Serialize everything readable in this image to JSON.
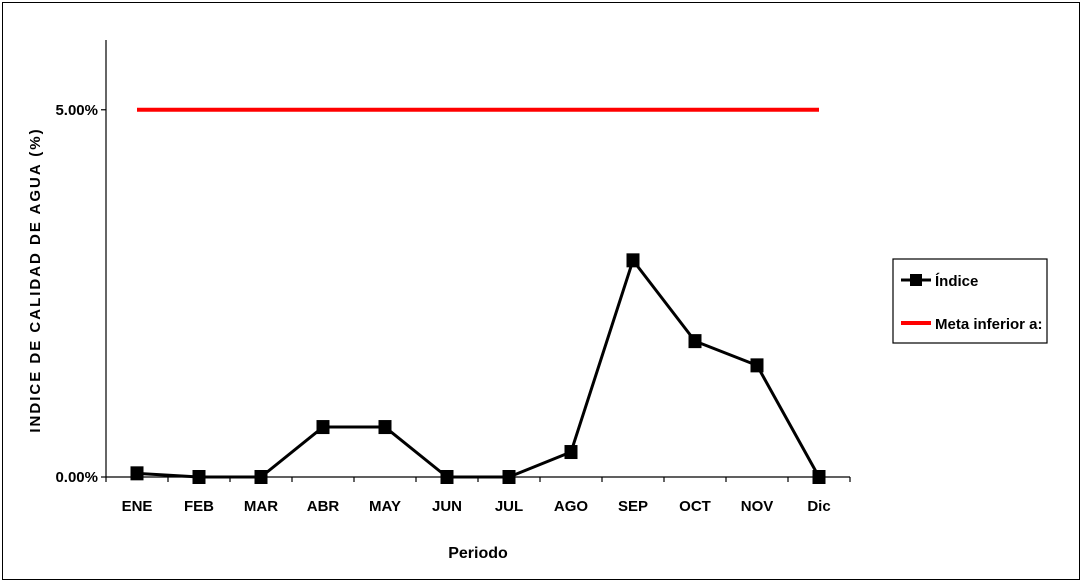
{
  "chart_data": {
    "type": "line",
    "categories": [
      "ENE",
      "FEB",
      "MAR",
      "ABR",
      "MAY",
      "JUN",
      "JUL",
      "AGO",
      "SEP",
      "OCT",
      "NOV",
      "Dic"
    ],
    "series": [
      {
        "name": "Índice",
        "color": "#000000",
        "marker": "square",
        "values": [
          0.05,
          0.0,
          0.0,
          0.68,
          0.68,
          0.0,
          0.0,
          0.34,
          2.95,
          1.85,
          1.52,
          0.0
        ]
      },
      {
        "name": "Meta inferior a:",
        "color": "#ff0000",
        "marker": "none",
        "values": [
          5.0,
          5.0,
          5.0,
          5.0,
          5.0,
          5.0,
          5.0,
          5.0,
          5.0,
          5.0,
          5.0,
          5.0
        ]
      }
    ],
    "ytick_labels": [
      "0.00%",
      "5.00%"
    ],
    "ytick_values": [
      0,
      5
    ],
    "ylim": [
      0,
      5.95
    ],
    "xlabel": "Periodo",
    "ylabel": "INDICE DE CALIDAD DE AGUA (%)",
    "legend_position": "right",
    "grid": false
  }
}
